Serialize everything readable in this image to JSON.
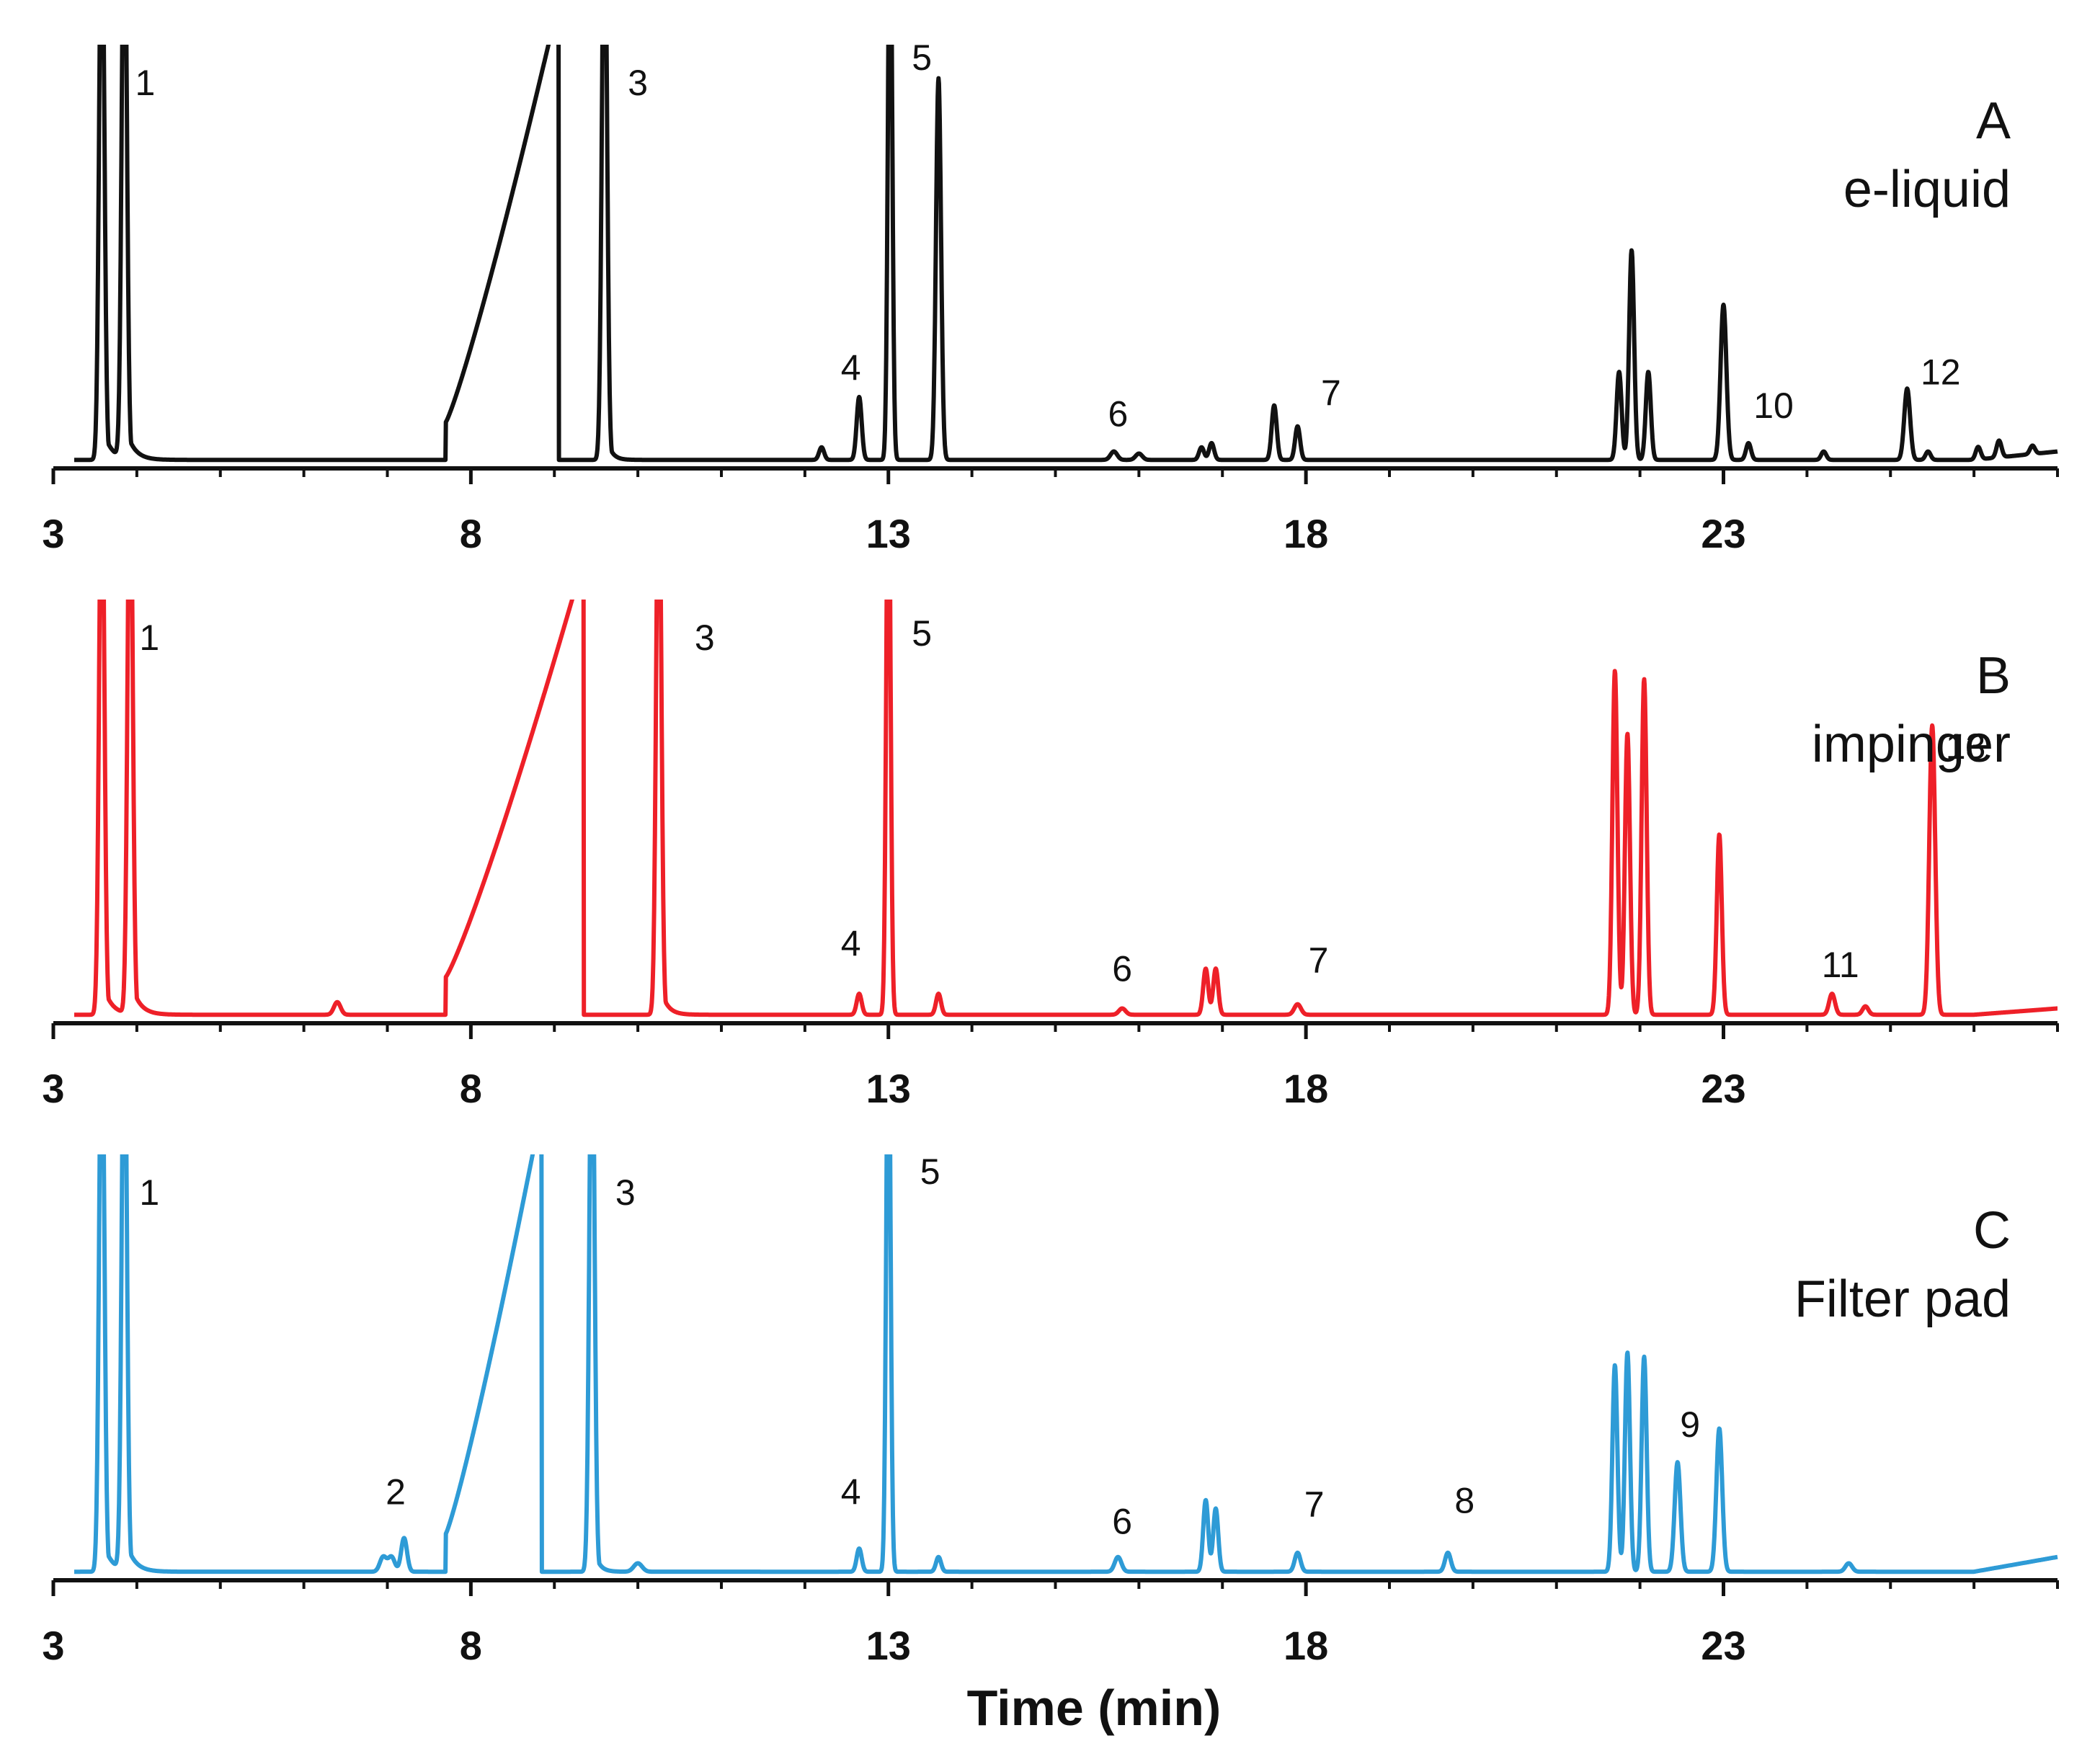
{
  "chart_data": {
    "type": "line",
    "xlabel": "Time (min)",
    "xlim": [
      3,
      27
    ],
    "xticks": [
      3,
      8,
      13,
      18,
      23
    ],
    "xtick_labels": [
      "3",
      "8",
      "13",
      "18",
      "23"
    ],
    "ylim": [
      0,
      100
    ],
    "grid": false,
    "panels": [
      {
        "letter": "A",
        "name": "e-liquid",
        "color": "#111111",
        "baseline": 1,
        "peaks": [
          {
            "rt": 3.58,
            "height": 140,
            "width": 0.03,
            "tail": 0.1
          },
          {
            "rt": 3.85,
            "height": 140,
            "width": 0.03,
            "tail": 0.1
          },
          {
            "rt": 9.6,
            "height": 140,
            "width": 0.03,
            "tail": 0.06
          },
          {
            "rt": 12.2,
            "height": 3,
            "width": 0.03
          },
          {
            "rt": 12.65,
            "height": 15,
            "width": 0.03
          },
          {
            "rt": 13.02,
            "height": 140,
            "width": 0.025
          },
          {
            "rt": 13.6,
            "height": 91,
            "width": 0.03
          },
          {
            "rt": 15.7,
            "height": 2,
            "width": 0.04
          },
          {
            "rt": 16.0,
            "height": 1.5,
            "width": 0.04
          },
          {
            "rt": 16.75,
            "height": 3,
            "width": 0.03
          },
          {
            "rt": 16.87,
            "height": 4,
            "width": 0.03
          },
          {
            "rt": 17.62,
            "height": 13,
            "width": 0.03
          },
          {
            "rt": 17.9,
            "height": 8,
            "width": 0.03
          },
          {
            "rt": 21.75,
            "height": 21,
            "width": 0.03
          },
          {
            "rt": 21.9,
            "height": 50,
            "width": 0.03
          },
          {
            "rt": 22.1,
            "height": 21,
            "width": 0.03
          },
          {
            "rt": 23.0,
            "height": 37,
            "width": 0.035
          },
          {
            "rt": 23.3,
            "height": 4,
            "width": 0.03
          },
          {
            "rt": 24.2,
            "height": 2,
            "width": 0.03
          },
          {
            "rt": 25.2,
            "height": 17,
            "width": 0.035
          },
          {
            "rt": 25.45,
            "height": 2,
            "width": 0.03
          },
          {
            "rt": 26.05,
            "height": 3,
            "width": 0.03
          },
          {
            "rt": 26.3,
            "height": 4,
            "width": 0.03
          },
          {
            "rt": 26.7,
            "height": 2,
            "width": 0.03
          }
        ],
        "ramp": {
          "start": 7.7,
          "end": 9.0,
          "start_level": 9,
          "end_level": 100
        },
        "drift": 2,
        "labels": [
          {
            "text": "1",
            "rt": 4.1,
            "level": 88
          },
          {
            "text": "3",
            "rt": 10.0,
            "level": 88
          },
          {
            "text": "4",
            "rt": 12.55,
            "level": 20
          },
          {
            "text": "5",
            "rt": 13.4,
            "level": 94
          },
          {
            "text": "6",
            "rt": 15.75,
            "level": 9
          },
          {
            "text": "7",
            "rt": 18.3,
            "level": 14
          },
          {
            "text": "10",
            "rt": 23.6,
            "level": 11
          },
          {
            "text": "12",
            "rt": 25.6,
            "level": 19
          }
        ]
      },
      {
        "letter": "B",
        "name": "impinger",
        "color": "#ee2028",
        "baseline": 1,
        "peaks": [
          {
            "rt": 3.58,
            "height": 140,
            "width": 0.03,
            "tail": 0.1
          },
          {
            "rt": 3.92,
            "height": 140,
            "width": 0.03,
            "tail": 0.1
          },
          {
            "rt": 6.4,
            "height": 3,
            "width": 0.04
          },
          {
            "rt": 10.25,
            "height": 140,
            "width": 0.03,
            "tail": 0.08
          },
          {
            "rt": 12.65,
            "height": 5,
            "width": 0.03
          },
          {
            "rt": 13.0,
            "height": 140,
            "width": 0.025
          },
          {
            "rt": 13.6,
            "height": 5,
            "width": 0.03
          },
          {
            "rt": 15.8,
            "height": 1.5,
            "width": 0.04
          },
          {
            "rt": 16.8,
            "height": 11,
            "width": 0.03
          },
          {
            "rt": 16.92,
            "height": 11,
            "width": 0.03
          },
          {
            "rt": 17.9,
            "height": 2.5,
            "width": 0.04
          },
          {
            "rt": 21.7,
            "height": 82,
            "width": 0.03
          },
          {
            "rt": 21.85,
            "height": 67,
            "width": 0.03
          },
          {
            "rt": 22.05,
            "height": 80,
            "width": 0.03
          },
          {
            "rt": 22.95,
            "height": 43,
            "width": 0.03
          },
          {
            "rt": 24.3,
            "height": 5,
            "width": 0.035
          },
          {
            "rt": 24.7,
            "height": 2,
            "width": 0.035
          },
          {
            "rt": 25.5,
            "height": 69,
            "width": 0.035
          }
        ],
        "ramp": {
          "start": 7.7,
          "end": 9.3,
          "start_level": 9,
          "end_level": 100
        },
        "drift": 1.5,
        "labels": [
          {
            "text": "1",
            "rt": 4.15,
            "level": 88
          },
          {
            "text": "3",
            "rt": 10.8,
            "level": 88
          },
          {
            "text": "4",
            "rt": 12.55,
            "level": 15
          },
          {
            "text": "5",
            "rt": 13.4,
            "level": 89
          },
          {
            "text": "6",
            "rt": 15.8,
            "level": 9
          },
          {
            "text": "7",
            "rt": 18.15,
            "level": 11
          },
          {
            "text": "11",
            "rt": 24.4,
            "level": 10
          },
          {
            "text": "13",
            "rt": 25.9,
            "level": 62
          }
        ]
      },
      {
        "letter": "C",
        "name": "Filter pad",
        "color": "#2e9bd6",
        "baseline": 1,
        "peaks": [
          {
            "rt": 3.58,
            "height": 140,
            "width": 0.03,
            "tail": 0.1
          },
          {
            "rt": 3.85,
            "height": 140,
            "width": 0.03,
            "tail": 0.1
          },
          {
            "rt": 6.95,
            "height": 3.5,
            "width": 0.04
          },
          {
            "rt": 7.05,
            "height": 3.5,
            "width": 0.04
          },
          {
            "rt": 7.2,
            "height": 8,
            "width": 0.035
          },
          {
            "rt": 9.45,
            "height": 140,
            "width": 0.03,
            "tail": 0.06
          },
          {
            "rt": 10.0,
            "height": 2,
            "width": 0.05
          },
          {
            "rt": 12.65,
            "height": 5.5,
            "width": 0.03
          },
          {
            "rt": 13.0,
            "height": 140,
            "width": 0.025
          },
          {
            "rt": 13.6,
            "height": 3.5,
            "width": 0.03
          },
          {
            "rt": 15.75,
            "height": 3.5,
            "width": 0.04
          },
          {
            "rt": 16.8,
            "height": 17,
            "width": 0.03
          },
          {
            "rt": 16.92,
            "height": 15,
            "width": 0.03
          },
          {
            "rt": 17.9,
            "height": 4.5,
            "width": 0.035
          },
          {
            "rt": 19.7,
            "height": 4.5,
            "width": 0.035
          },
          {
            "rt": 21.7,
            "height": 49,
            "width": 0.03
          },
          {
            "rt": 21.85,
            "height": 52,
            "width": 0.03
          },
          {
            "rt": 22.05,
            "height": 51,
            "width": 0.03
          },
          {
            "rt": 22.45,
            "height": 26,
            "width": 0.035
          },
          {
            "rt": 22.95,
            "height": 34,
            "width": 0.035
          },
          {
            "rt": 24.5,
            "height": 2,
            "width": 0.04
          }
        ],
        "ramp": {
          "start": 7.7,
          "end": 8.8,
          "start_level": 9,
          "end_level": 100
        },
        "drift": 3.5,
        "labels": [
          {
            "text": "1",
            "rt": 4.15,
            "level": 88
          },
          {
            "text": "3",
            "rt": 9.85,
            "level": 88
          },
          {
            "text": "2",
            "rt": 7.1,
            "level": 17
          },
          {
            "text": "4",
            "rt": 12.55,
            "level": 17
          },
          {
            "text": "5",
            "rt": 13.5,
            "level": 93
          },
          {
            "text": "6",
            "rt": 15.8,
            "level": 10
          },
          {
            "text": "7",
            "rt": 18.1,
            "level": 14
          },
          {
            "text": "8",
            "rt": 19.9,
            "level": 15
          },
          {
            "text": "9",
            "rt": 22.6,
            "level": 33
          }
        ]
      }
    ]
  }
}
